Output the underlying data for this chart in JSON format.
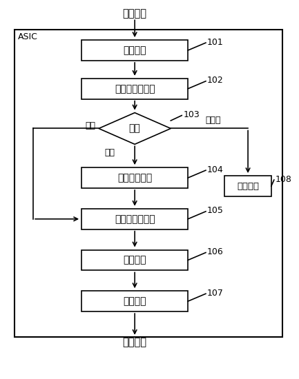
{
  "title_top": "报文进入",
  "title_bottom": "报文发出",
  "asic_label": "ASIC",
  "boxes": [
    {
      "label": "报文解析",
      "num": "101"
    },
    {
      "label": "入接口信息获取",
      "num": "102"
    },
    {
      "label": "查表",
      "num": "103",
      "shape": "diamond"
    },
    {
      "label": "组播信息获取",
      "num": "104"
    },
    {
      "label": "出接口信息获取",
      "num": "105"
    },
    {
      "label": "报文封装",
      "num": "106"
    },
    {
      "label": "报文转发",
      "num": "107"
    }
  ],
  "discard_box": {
    "label": "丢弃报文",
    "num": "108"
  },
  "side_labels": {
    "unicast": "单播",
    "multicast": "组播",
    "no_result": "无结果"
  },
  "bg_color": "#ffffff",
  "box_color": "#ffffff",
  "border_color": "#000000",
  "arrow_color": "#000000",
  "font_color": "#000000"
}
